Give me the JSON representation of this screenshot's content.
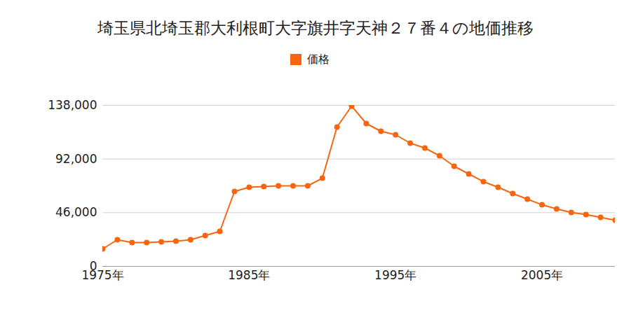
{
  "chart_data": {
    "type": "line",
    "title": "埼玉県北埼玉郡大利根町大字旗井字天神２７番４の地価推移",
    "x": [
      1975,
      1976,
      1977,
      1978,
      1979,
      1980,
      1981,
      1982,
      1983,
      1984,
      1985,
      1986,
      1987,
      1988,
      1989,
      1990,
      1991,
      1992,
      1993,
      1994,
      1995,
      1996,
      1997,
      1998,
      1999,
      2000,
      2001,
      2002,
      2003,
      2004,
      2005,
      2006,
      2007,
      2008,
      2009,
      2010
    ],
    "series": [
      {
        "name": "価格",
        "color": "#f5660f",
        "marker": "circle",
        "values": [
          15000,
          22800,
          20400,
          20400,
          21000,
          21600,
          22800,
          26400,
          30000,
          64200,
          67800,
          68400,
          69000,
          69000,
          69000,
          75600,
          119400,
          137400,
          122400,
          115800,
          112800,
          105600,
          101400,
          94800,
          85800,
          79200,
          72600,
          67800,
          62400,
          57600,
          52800,
          49200,
          46200,
          44400,
          42000,
          39600
        ]
      }
    ],
    "xlim": [
      1975,
      2010
    ],
    "xticks": [
      {
        "value": 1975,
        "label": "1975年"
      },
      {
        "value": 1985,
        "label": "1985年"
      },
      {
        "value": 1995,
        "label": "1995年"
      },
      {
        "value": 2005,
        "label": "2005年"
      }
    ],
    "ylim": [
      0,
      138000
    ],
    "yticks": [
      0,
      {
        "value": 46000,
        "label": "46,000"
      },
      {
        "value": 92000,
        "label": "92,000"
      },
      {
        "value": 138000,
        "label": "138,000"
      }
    ],
    "grid": true,
    "legend": "top"
  }
}
